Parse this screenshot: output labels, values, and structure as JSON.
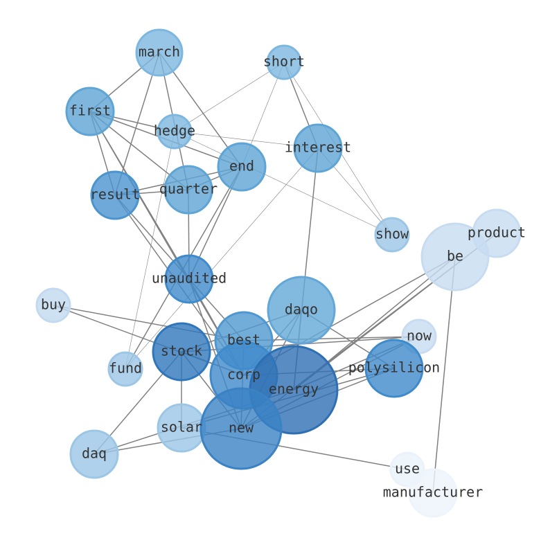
{
  "nodes": [
    "march",
    "short",
    "first",
    "hedge",
    "interest",
    "end",
    "quarter",
    "result",
    "show",
    "product",
    "be",
    "unaudited",
    "buy",
    "daqo",
    "best",
    "now",
    "stock",
    "fund",
    "polysilicon",
    "corp",
    "energy",
    "solar",
    "new",
    "daq",
    "use",
    "manufacturer"
  ]
}
